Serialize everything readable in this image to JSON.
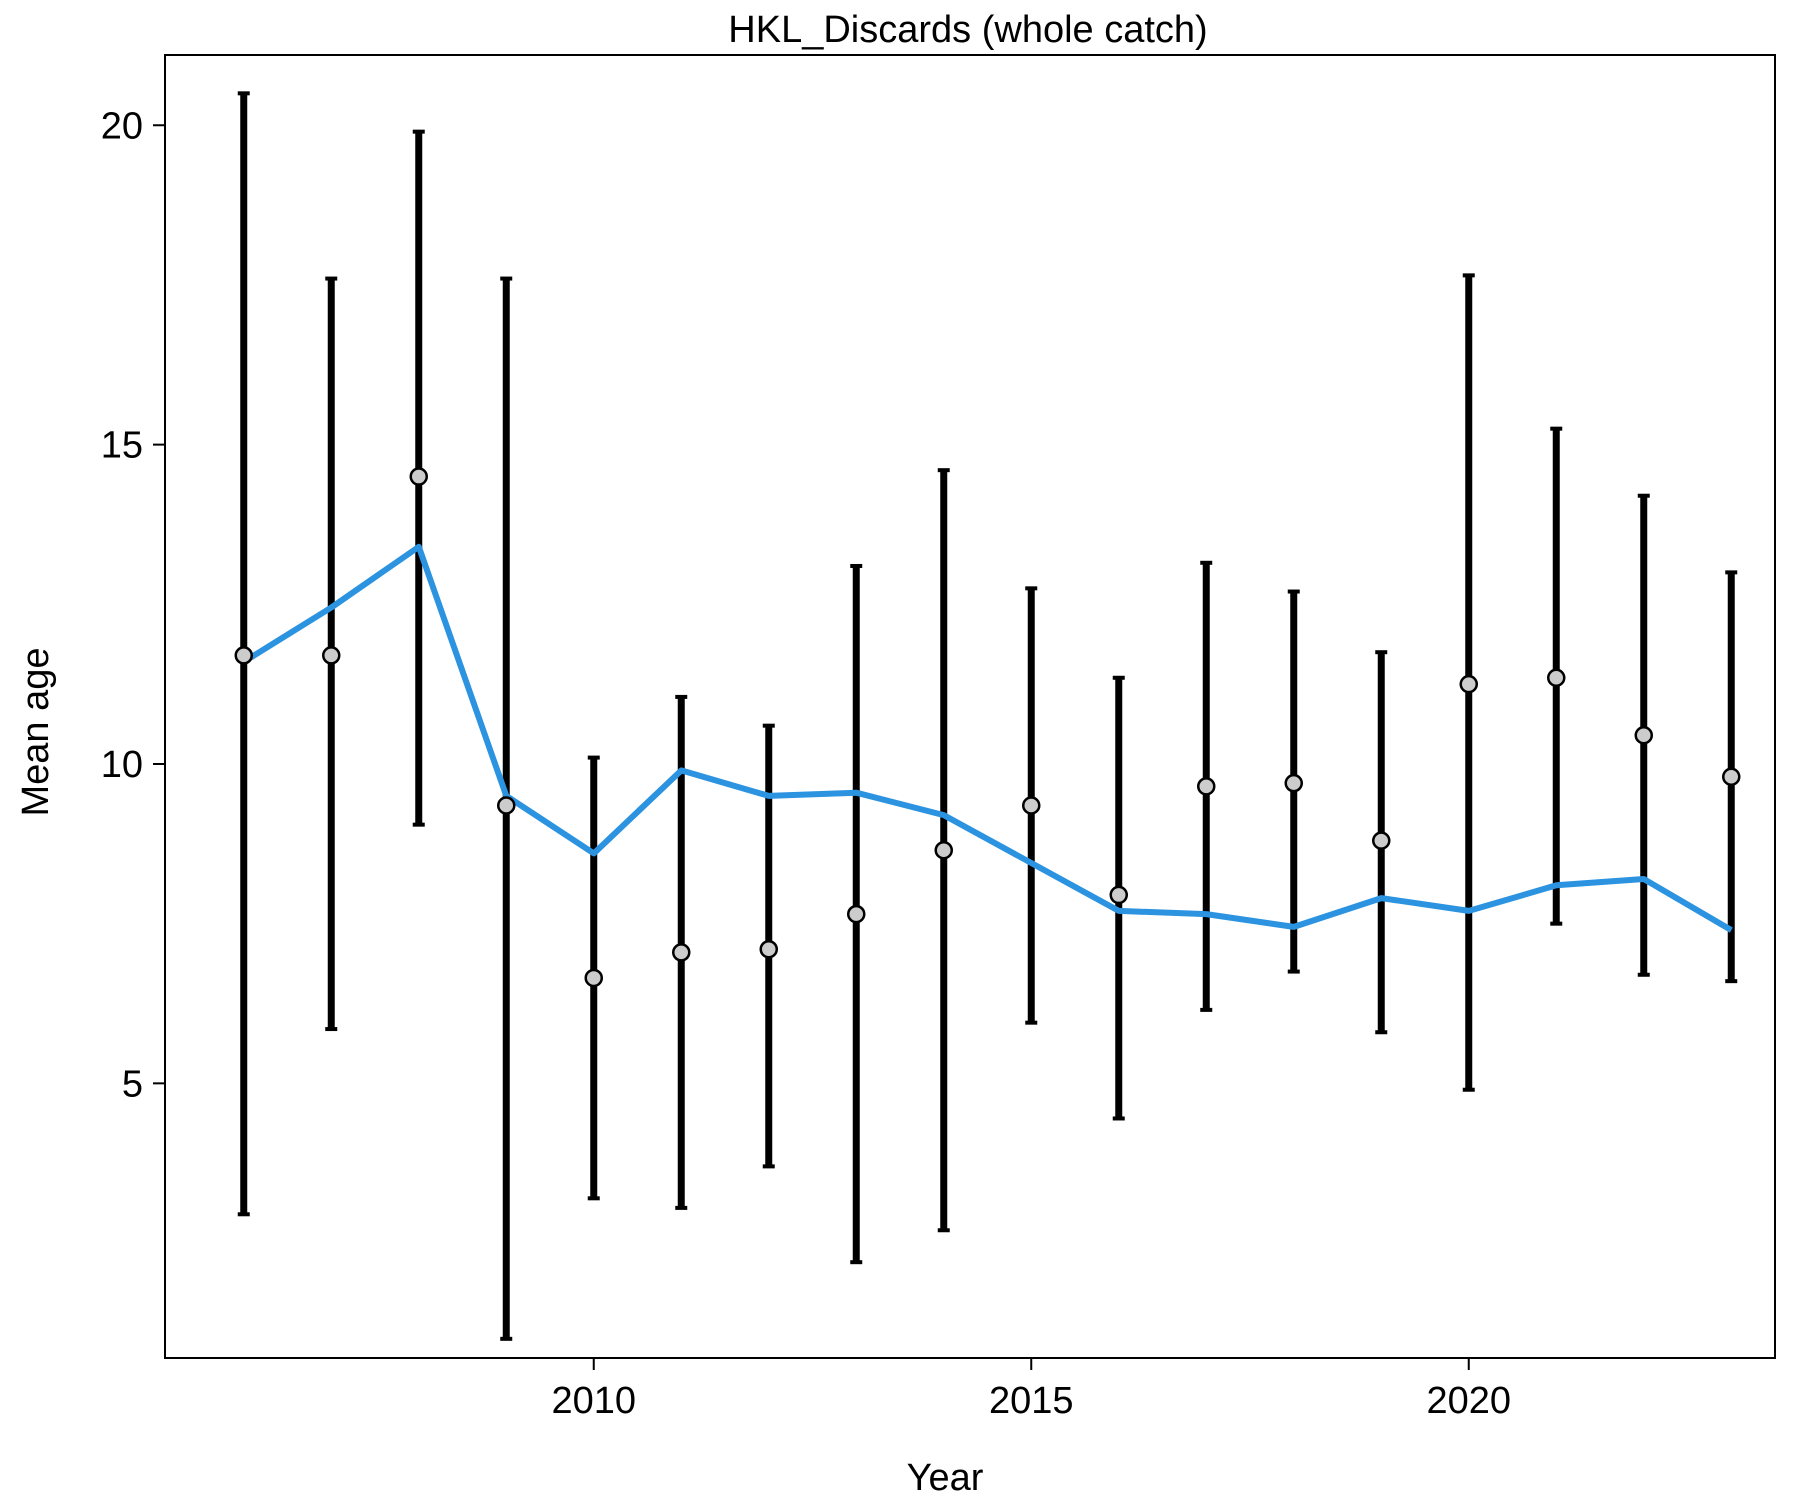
{
  "chart_data": {
    "type": "line",
    "title": "HKL_Discards (whole catch)",
    "xlabel": "Year",
    "ylabel": "Mean age",
    "xlim": [
      2005.1,
      2023.5
    ],
    "ylim": [
      0.7,
      21.1
    ],
    "x_ticks": [
      2010,
      2015,
      2020
    ],
    "x_tick_labels": [
      "2010",
      "2015",
      "2020"
    ],
    "y_ticks": [
      5,
      10,
      15,
      20
    ],
    "y_tick_labels": [
      "5",
      "10",
      "15",
      "20"
    ],
    "grid": false,
    "legend": "none",
    "x": [
      2006,
      2007,
      2008,
      2009,
      2010,
      2011,
      2012,
      2013,
      2014,
      2015,
      2016,
      2017,
      2018,
      2019,
      2020,
      2021,
      2022,
      2023
    ],
    "series": [
      {
        "kind": "observed_with_intervals",
        "color": "#000000",
        "point_fill": "#cccccc",
        "values": [
          11.7,
          11.7,
          14.5,
          9.35,
          6.65,
          7.05,
          7.1,
          7.65,
          8.65,
          9.35,
          7.95,
          9.65,
          9.7,
          8.8,
          11.25,
          11.35,
          10.45,
          9.8
        ],
        "lower": [
          2.95,
          5.85,
          9.05,
          1.0,
          3.2,
          3.05,
          3.7,
          2.2,
          2.7,
          5.95,
          4.45,
          6.15,
          6.75,
          5.8,
          4.9,
          7.5,
          6.7,
          6.6
        ],
        "upper": [
          20.5,
          17.6,
          19.9,
          17.6,
          10.1,
          11.05,
          10.6,
          13.1,
          14.6,
          12.75,
          11.35,
          13.15,
          12.7,
          11.75,
          17.65,
          15.25,
          14.2,
          13.0
        ]
      },
      {
        "kind": "expected",
        "color": "#2b93e0",
        "values": [
          11.6,
          12.45,
          13.4,
          9.5,
          8.6,
          9.9,
          9.5,
          9.55,
          9.2,
          8.45,
          7.7,
          7.65,
          7.45,
          7.9,
          7.7,
          8.1,
          8.2,
          7.4
        ]
      }
    ]
  }
}
